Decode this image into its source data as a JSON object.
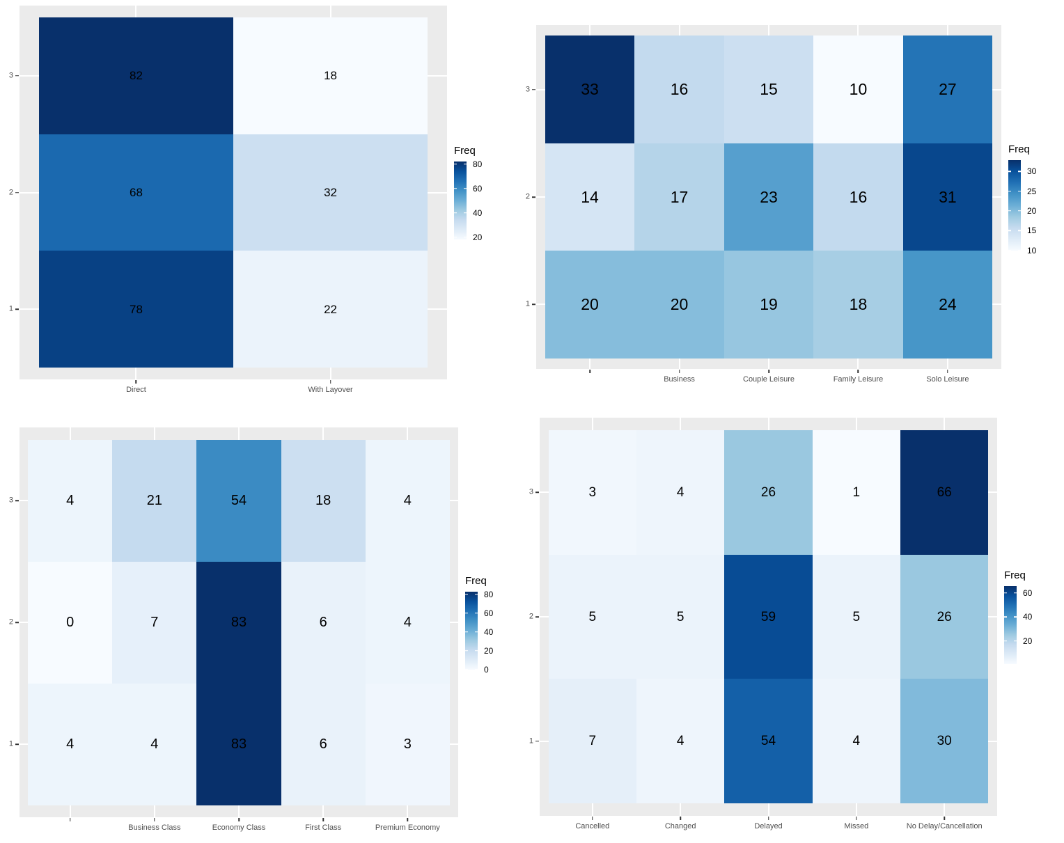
{
  "colors": {
    "page_bg": "#FFFFFF",
    "panel_bg": "#EBEBEB",
    "axis_text": "#4D4D4D",
    "tick_mark": "#333333",
    "cell_text": "#000000",
    "gridline": "#FFFFFF",
    "blues_palette": [
      "#F7FBFF",
      "#DEEBF7",
      "#C6DBEF",
      "#9ECAE1",
      "#6BAED6",
      "#4292C6",
      "#2171B5",
      "#08519C",
      "#08306B"
    ]
  },
  "chart_data": [
    {
      "type": "heatmap",
      "position": "top-left",
      "title": "",
      "legend": {
        "title": "Freq",
        "ticks": [
          80,
          60,
          40,
          20
        ],
        "position": "right"
      },
      "scale": {
        "min": 18,
        "max": 82,
        "palette": "Blues",
        "direction": "light-to-dark"
      },
      "x_categories": [
        "Direct",
        "With Layover"
      ],
      "y_categories_top_to_bottom": [
        "3",
        "2",
        "1"
      ],
      "rows": [
        {
          "y": "3",
          "values": [
            82,
            18
          ]
        },
        {
          "y": "2",
          "values": [
            68,
            32
          ]
        },
        {
          "y": "1",
          "values": [
            78,
            22
          ]
        }
      ]
    },
    {
      "type": "heatmap",
      "position": "top-right",
      "title": "",
      "legend": {
        "title": "Freq",
        "ticks": [
          30,
          25,
          20,
          15,
          10
        ],
        "position": "right"
      },
      "scale": {
        "min": 10,
        "max": 33,
        "palette": "Blues",
        "direction": "light-to-dark"
      },
      "x_categories": [
        "",
        "Business",
        "Couple Leisure",
        "Family Leisure",
        "Solo Leisure"
      ],
      "y_categories_top_to_bottom": [
        "3",
        "2",
        "1"
      ],
      "rows": [
        {
          "y": "3",
          "values": [
            33,
            16,
            15,
            10,
            27
          ]
        },
        {
          "y": "2",
          "values": [
            14,
            17,
            23,
            16,
            31
          ]
        },
        {
          "y": "1",
          "values": [
            20,
            20,
            19,
            18,
            24
          ]
        }
      ]
    },
    {
      "type": "heatmap",
      "position": "bottom-left",
      "title": "",
      "legend": {
        "title": "Freq",
        "ticks": [
          80,
          60,
          40,
          20,
          0
        ],
        "position": "right"
      },
      "scale": {
        "min": 0,
        "max": 83,
        "palette": "Blues",
        "direction": "light-to-dark"
      },
      "x_categories": [
        "",
        "Business Class",
        "Economy Class",
        "First Class",
        "Premium Economy"
      ],
      "y_categories_top_to_bottom": [
        "3",
        "2",
        "1"
      ],
      "rows": [
        {
          "y": "3",
          "values": [
            4,
            21,
            54,
            18,
            4
          ]
        },
        {
          "y": "2",
          "values": [
            0,
            7,
            83,
            6,
            4
          ]
        },
        {
          "y": "1",
          "values": [
            4,
            4,
            83,
            6,
            3
          ]
        }
      ]
    },
    {
      "type": "heatmap",
      "position": "bottom-right",
      "title": "",
      "legend": {
        "title": "Freq",
        "ticks": [
          60,
          40,
          20
        ],
        "position": "right"
      },
      "scale": {
        "min": 1,
        "max": 66,
        "palette": "Blues",
        "direction": "light-to-dark"
      },
      "x_categories": [
        "Cancelled",
        "Changed",
        "Delayed",
        "Missed",
        "No Delay/Cancellation"
      ],
      "y_categories_top_to_bottom": [
        "3",
        "2",
        "1"
      ],
      "rows": [
        {
          "y": "3",
          "values": [
            3,
            4,
            26,
            1,
            66
          ]
        },
        {
          "y": "2",
          "values": [
            5,
            5,
            59,
            5,
            26
          ]
        },
        {
          "y": "1",
          "values": [
            7,
            4,
            54,
            4,
            30
          ]
        }
      ]
    }
  ]
}
